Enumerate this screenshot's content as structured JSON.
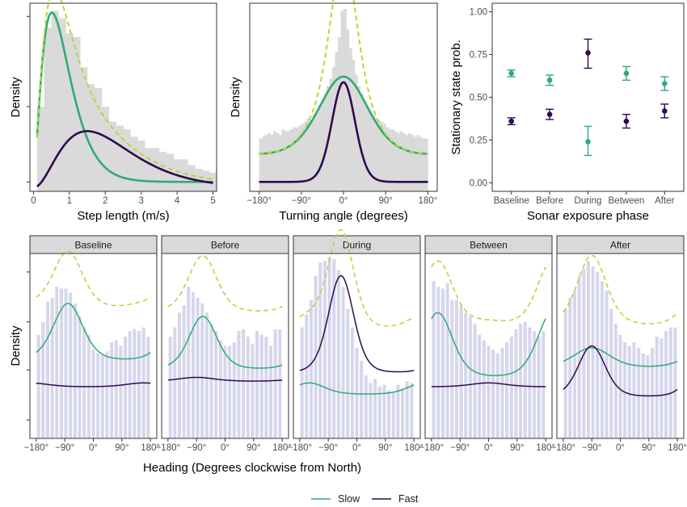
{
  "colors": {
    "slow": "#2eac72",
    "fast": "#2f0a4f",
    "total": "#b8d63a",
    "hist_top": "#dadada",
    "hist_bottom": "#d6d6ec",
    "strip": "#d9d9d9"
  },
  "legend": {
    "position": "bottom",
    "entries": [
      {
        "key": "slow",
        "label": "Slow"
      },
      {
        "key": "fast",
        "label": "Fast"
      }
    ]
  },
  "chart_data": [
    {
      "id": "step",
      "type": "histogram+density",
      "xlabel": "Step length (m/s)",
      "ylabel": "Density",
      "xlim": [
        -0.1,
        5.1
      ],
      "ylim": [
        0,
        1.0
      ],
      "x_ticks": [
        0,
        1,
        2,
        3,
        4,
        5
      ],
      "x_tick_labels": [
        "0",
        "1",
        "2",
        "3",
        "4",
        "5"
      ],
      "y_ticks": [
        0.05,
        0.45,
        0.93
      ],
      "hist": {
        "bin_start": 0.1,
        "bin_width": 0.2,
        "heights": [
          0.45,
          0.87,
          0.96,
          0.92,
          0.84,
          0.82,
          0.66,
          0.57,
          0.55,
          0.45,
          0.37,
          0.35,
          0.33,
          0.29,
          0.27,
          0.23,
          0.23,
          0.21,
          0.2,
          0.17,
          0.17,
          0.14,
          0.12,
          0.11,
          0.1
        ]
      },
      "curves": {
        "slow": {
          "type": "gamma",
          "shape": 2.6,
          "scale": 0.32,
          "scale_to": 0.9
        },
        "fast": {
          "type": "gamma",
          "shape": 3.2,
          "scale": 0.68,
          "scale_to": 0.3
        },
        "total": {
          "type": "sum"
        }
      }
    },
    {
      "id": "turn",
      "type": "histogram+density",
      "xlabel": "Turning angle (degrees)",
      "ylabel": "Density",
      "xlim": [
        -200,
        200
      ],
      "ylim": [
        0,
        1.0
      ],
      "x_ticks": [
        -180,
        -90,
        0,
        90,
        180
      ],
      "x_tick_labels": [
        "−180°",
        "−90°",
        "0°",
        "90°",
        "180°"
      ],
      "y_ticks": [],
      "hist": {
        "bin_start": -180,
        "bin_width": 6,
        "heights": [
          0.28,
          0.29,
          0.3,
          0.31,
          0.3,
          0.32,
          0.31,
          0.3,
          0.33,
          0.32,
          0.32,
          0.33,
          0.34,
          0.34,
          0.35,
          0.36,
          0.37,
          0.39,
          0.38,
          0.41,
          0.43,
          0.46,
          0.48,
          0.52,
          0.56,
          0.6,
          0.66,
          0.74,
          0.82,
          0.96,
          0.97,
          0.86,
          0.76,
          0.7,
          0.62,
          0.56,
          0.52,
          0.48,
          0.45,
          0.43,
          0.41,
          0.39,
          0.38,
          0.37,
          0.36,
          0.34,
          0.33,
          0.33,
          0.32,
          0.31,
          0.32,
          0.31,
          0.3,
          0.31,
          0.3,
          0.29,
          0.3,
          0.29,
          0.28,
          0.28
        ]
      },
      "curves": {
        "slow": {
          "type": "vonmises",
          "mu": 0,
          "kappa": 1.2,
          "base": 0.2,
          "amp": 0.41
        },
        "fast": {
          "type": "vonmises",
          "mu": 0,
          "kappa": 5.5,
          "base": 0.05,
          "amp": 0.53
        },
        "total": {
          "type": "sum"
        }
      }
    },
    {
      "id": "stationary",
      "type": "scatter-errorbar",
      "xlabel": "Sonar exposure phase",
      "ylabel": "Stationary state prob.",
      "categories": [
        "Baseline",
        "Before",
        "During",
        "Between",
        "After"
      ],
      "ylim": [
        -0.05,
        1.05
      ],
      "y_ticks": [
        0,
        0.25,
        0.5,
        0.75,
        1.0
      ],
      "y_tick_labels": [
        "0.00",
        "0.25",
        "0.50",
        "0.75",
        "1.00"
      ],
      "series": [
        {
          "key": "slow",
          "values": [
            0.64,
            0.6,
            0.24,
            0.64,
            0.58
          ],
          "lower": [
            0.62,
            0.57,
            0.16,
            0.6,
            0.54
          ],
          "upper": [
            0.66,
            0.63,
            0.33,
            0.68,
            0.62
          ]
        },
        {
          "key": "fast",
          "values": [
            0.36,
            0.4,
            0.76,
            0.36,
            0.42
          ],
          "lower": [
            0.34,
            0.37,
            0.67,
            0.32,
            0.38
          ],
          "upper": [
            0.38,
            0.43,
            0.84,
            0.4,
            0.46
          ]
        }
      ]
    },
    {
      "id": "heading",
      "type": "faceted histogram+density",
      "xlabel": "Heading (Degrees clockwise from North)",
      "ylabel": "Density",
      "xlim": [
        -200,
        200
      ],
      "ylim": [
        0,
        1.0
      ],
      "x_ticks": [
        -180,
        -90,
        0,
        90,
        180
      ],
      "x_tick_labels": [
        "−180°",
        "−90°",
        "0°",
        "90°",
        "180°"
      ],
      "y_ticks": [
        0.1,
        0.37,
        0.63,
        0.9
      ],
      "facets": [
        {
          "title": "Baseline",
          "hist": [
            0.56,
            0.63,
            0.74,
            0.76,
            0.82,
            0.81,
            0.81,
            0.79,
            0.73,
            0.66,
            0.6,
            0.56,
            0.48,
            0.46,
            0.45,
            0.47,
            0.52,
            0.53,
            0.5,
            0.55,
            0.58,
            0.59,
            0.58,
            0.6,
            0.55
          ],
          "curves": {
            "slow": {
              "mu": -80,
              "kappa": 1.6,
              "base": 0.43,
              "amp": 0.3
            },
            "fast": {
              "mu": 160,
              "kappa": 1.0,
              "base": 0.28,
              "amp": 0.02
            }
          }
        },
        {
          "title": "Before",
          "hist": [
            0.55,
            0.6,
            0.68,
            0.72,
            0.82,
            0.79,
            0.76,
            0.73,
            0.68,
            0.62,
            0.58,
            0.53,
            0.5,
            0.5,
            0.52,
            0.58,
            0.59,
            0.55,
            0.51,
            0.58,
            0.56,
            0.55,
            0.5,
            0.59,
            0.59
          ],
          "curves": {
            "slow": {
              "mu": -70,
              "kappa": 1.8,
              "base": 0.38,
              "amp": 0.28
            },
            "fast": {
              "mu": -90,
              "kappa": 1.0,
              "base": 0.31,
              "amp": 0.02
            }
          }
        },
        {
          "title": "During",
          "hist": [
            0.6,
            0.67,
            0.75,
            0.88,
            0.95,
            0.96,
            0.98,
            0.97,
            0.91,
            0.82,
            0.7,
            0.6,
            0.49,
            0.42,
            0.34,
            0.3,
            0.32,
            0.28,
            0.29,
            0.26,
            0.25,
            0.29,
            0.27,
            0.31,
            0.3
          ],
          "curves": {
            "slow": {
              "mu": -150,
              "kappa": 1.4,
              "base": 0.24,
              "amp": 0.06
            },
            "fast": {
              "mu": -50,
              "kappa": 2.2,
              "base": 0.36,
              "amp": 0.52
            }
          }
        },
        {
          "title": "Between",
          "hist": [
            0.85,
            0.82,
            0.81,
            0.84,
            0.75,
            0.75,
            0.72,
            0.68,
            0.66,
            0.62,
            0.56,
            0.53,
            0.5,
            0.48,
            0.46,
            0.49,
            0.52,
            0.55,
            0.59,
            0.62,
            0.63,
            0.6,
            0.58,
            0.55,
            0.58
          ],
          "curves": {
            "slow": {
              "mu": -160,
              "kappa": 1.6,
              "base": 0.34,
              "amp": 0.34
            },
            "fast": {
              "mu": 0,
              "kappa": 1.0,
              "base": 0.28,
              "amp": 0.02
            }
          }
        },
        {
          "title": "After",
          "hist": [
            0.7,
            0.76,
            0.8,
            0.88,
            0.92,
            0.96,
            0.93,
            0.9,
            0.85,
            0.8,
            0.7,
            0.62,
            0.56,
            0.52,
            0.5,
            0.52,
            0.49,
            0.46,
            0.45,
            0.49,
            0.55,
            0.54,
            0.58,
            0.6,
            0.6
          ],
          "curves": {
            "slow": {
              "mu": -90,
              "kappa": 1.0,
              "base": 0.39,
              "amp": 0.1
            },
            "fast": {
              "mu": -90,
              "kappa": 1.9,
              "base": 0.23,
              "amp": 0.27
            }
          }
        }
      ]
    }
  ]
}
